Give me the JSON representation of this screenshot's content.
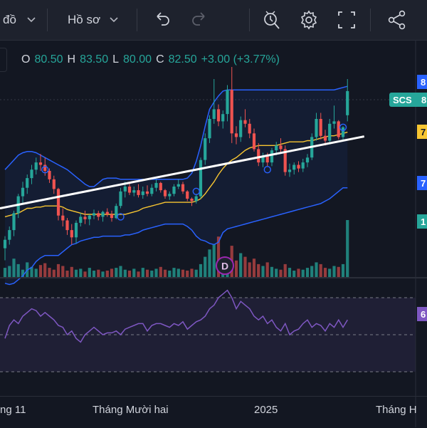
{
  "toolbar": {
    "chart_label": "đồ",
    "profile_label": "Hồ sơ",
    "icons": [
      "chevron-down-icon",
      "undo-icon",
      "redo-icon",
      "alert-icon",
      "gear-icon",
      "fullscreen-icon",
      "share-icon"
    ]
  },
  "ohlc": {
    "o_label": "O",
    "o_value": "80.50",
    "h_label": "H",
    "h_value": "83.50",
    "l_label": "L",
    "l_value": "80.00",
    "c_label": "C",
    "c_value": "82.50",
    "change": "+3.00 (+3.77%)"
  },
  "price_labels": {
    "symbol": "SCS",
    "symbol_value": "8",
    "upper_band": "8",
    "ma": "7",
    "lower_band": "7",
    "volume": "1",
    "rsi": "6"
  },
  "time_axis": {
    "labels": [
      "ng 11",
      "Tháng Mười hai",
      "2025",
      "Tháng H"
    ]
  },
  "events": {
    "dividend_marker": "D"
  },
  "colors": {
    "up": "#26a69a",
    "down": "#ef5350",
    "band": "#2962ff",
    "ma": "#f7c531",
    "rsi": "#7e57c2",
    "trendline": "#ffffff",
    "background": "#131722"
  },
  "chart_data": [
    {
      "type": "candlestick",
      "title": "",
      "trendline": {
        "from": [
          0,
          72.8
        ],
        "to": [
          79,
          78.75
        ]
      },
      "candles": [
        [
          69.5,
          70.5,
          68.5,
          70.2
        ],
        [
          70.2,
          71.3,
          69.8,
          71.0
        ],
        [
          71.0,
          72.6,
          70.5,
          72.4
        ],
        [
          72.4,
          74.0,
          72.0,
          73.8
        ],
        [
          73.8,
          75.0,
          73.2,
          74.5
        ],
        [
          74.5,
          75.6,
          74.0,
          75.3
        ],
        [
          75.3,
          76.4,
          74.8,
          76.0
        ],
        [
          76.0,
          77.0,
          75.6,
          76.6
        ],
        [
          76.6,
          77.3,
          75.9,
          76.4
        ],
        [
          76.4,
          77.0,
          75.5,
          75.9
        ],
        [
          75.9,
          76.1,
          74.9,
          75.2
        ],
        [
          75.2,
          75.5,
          74.0,
          74.4
        ],
        [
          74.4,
          74.5,
          71.8,
          72.2
        ],
        [
          72.2,
          72.8,
          71.3,
          71.8
        ],
        [
          71.8,
          72.0,
          70.6,
          71.0
        ],
        [
          71.0,
          71.5,
          69.8,
          70.4
        ],
        [
          70.4,
          71.8,
          69.9,
          71.6
        ],
        [
          71.6,
          72.4,
          71.3,
          72.1
        ],
        [
          72.1,
          72.6,
          71.5,
          71.9
        ],
        [
          71.9,
          72.3,
          71.4,
          72.2
        ],
        [
          72.2,
          72.7,
          71.9,
          72.4
        ],
        [
          72.4,
          72.6,
          71.8,
          72.1
        ],
        [
          72.1,
          72.6,
          71.7,
          72.5
        ],
        [
          72.5,
          72.8,
          72.1,
          72.3
        ],
        [
          72.3,
          72.6,
          71.7,
          72.0
        ],
        [
          72.0,
          73.2,
          71.9,
          73.0
        ],
        [
          73.0,
          74.5,
          72.8,
          74.2
        ],
        [
          74.2,
          75.0,
          73.7,
          74.6
        ],
        [
          74.6,
          74.9,
          73.9,
          74.1
        ],
        [
          74.1,
          74.6,
          73.8,
          74.3
        ],
        [
          74.3,
          74.8,
          73.7,
          73.9
        ],
        [
          73.9,
          74.6,
          73.6,
          74.2
        ],
        [
          74.2,
          74.7,
          73.8,
          74.0
        ],
        [
          74.0,
          74.8,
          73.8,
          74.5
        ],
        [
          74.5,
          75.2,
          74.2,
          74.9
        ],
        [
          74.9,
          75.0,
          74.1,
          74.3
        ],
        [
          74.3,
          74.4,
          73.6,
          73.8
        ],
        [
          73.8,
          74.2,
          73.5,
          74.0
        ],
        [
          74.0,
          74.8,
          73.8,
          74.6
        ],
        [
          74.6,
          75.2,
          74.4,
          74.8
        ],
        [
          74.8,
          75.0,
          74.0,
          74.2
        ],
        [
          74.2,
          74.3,
          73.4,
          73.6
        ],
        [
          73.6,
          73.7,
          73.0,
          73.4
        ],
        [
          73.4,
          74.0,
          73.2,
          73.8
        ],
        [
          73.8,
          77.0,
          73.6,
          76.8
        ],
        [
          76.8,
          79.0,
          76.4,
          78.6
        ],
        [
          78.6,
          80.5,
          78.2,
          80.2
        ],
        [
          80.2,
          83.5,
          79.8,
          81.0
        ],
        [
          81.0,
          81.4,
          79.6,
          80.0
        ],
        [
          80.0,
          80.9,
          79.4,
          80.6
        ],
        [
          80.6,
          83.0,
          80.0,
          82.6
        ],
        [
          82.6,
          84.5,
          78.2,
          79.0
        ],
        [
          79.0,
          79.6,
          78.1,
          78.7
        ],
        [
          78.7,
          80.4,
          78.3,
          80.1
        ],
        [
          80.1,
          81.0,
          79.5,
          79.8
        ],
        [
          79.8,
          80.2,
          78.6,
          79.0
        ],
        [
          79.0,
          79.4,
          77.5,
          77.7
        ],
        [
          77.7,
          78.2,
          76.3,
          76.6
        ],
        [
          76.6,
          77.4,
          76.2,
          77.1
        ],
        [
          77.1,
          77.4,
          76.3,
          76.6
        ],
        [
          76.6,
          77.8,
          76.3,
          77.6
        ],
        [
          77.6,
          78.3,
          77.2,
          78.0
        ],
        [
          78.0,
          78.6,
          77.4,
          77.7
        ],
        [
          77.7,
          78.0,
          75.5,
          75.8
        ],
        [
          75.8,
          76.5,
          75.4,
          76.0
        ],
        [
          76.0,
          76.6,
          75.6,
          76.4
        ],
        [
          76.4,
          76.7,
          75.8,
          76.1
        ],
        [
          76.1,
          76.9,
          75.8,
          76.6
        ],
        [
          76.6,
          77.3,
          76.2,
          77.0
        ],
        [
          77.0,
          79.0,
          76.8,
          78.7
        ],
        [
          78.7,
          80.7,
          78.4,
          80.2
        ],
        [
          80.2,
          80.7,
          78.5,
          78.8
        ],
        [
          78.8,
          79.3,
          78.0,
          78.4
        ],
        [
          78.4,
          80.2,
          78.1,
          79.8
        ],
        [
          79.8,
          81.3,
          79.4,
          80.0
        ],
        [
          80.0,
          80.1,
          78.5,
          78.7
        ],
        [
          78.7,
          79.6,
          78.4,
          79.5
        ],
        [
          80.5,
          83.5,
          80.0,
          82.5
        ]
      ],
      "volume": [
        10,
        12,
        20,
        14,
        8,
        16,
        11,
        9,
        13,
        15,
        10,
        8,
        14,
        12,
        7,
        11,
        8,
        9,
        6,
        10,
        7,
        8,
        6,
        7,
        9,
        10,
        12,
        8,
        7,
        9,
        6,
        10,
        8,
        7,
        9,
        11,
        8,
        7,
        10,
        9,
        8,
        7,
        9,
        8,
        14,
        22,
        30,
        36,
        44,
        20,
        18,
        34,
        18,
        26,
        22,
        16,
        20,
        14,
        12,
        16,
        11,
        9,
        8,
        14,
        10,
        7,
        9,
        8,
        10,
        12,
        16,
        14,
        10,
        9,
        12,
        11,
        14,
        62
      ],
      "bollinger_upper": [
        76.0,
        76.4,
        76.8,
        77.2,
        77.4,
        77.5,
        77.5,
        77.4,
        77.2,
        77.0,
        76.8,
        76.6,
        76.4,
        76.2,
        76.0,
        75.7,
        75.4,
        75.1,
        74.8,
        74.6,
        74.6,
        74.9,
        75.2,
        75.3,
        75.3,
        75.3,
        75.2,
        75.2,
        75.2,
        75.2,
        75.2,
        75.2,
        75.2,
        75.2,
        75.2,
        75.2,
        75.2,
        75.2,
        75.2,
        75.2,
        75.2,
        75.3,
        75.7,
        76.7,
        78.0,
        79.6,
        81.0,
        81.6,
        82.1,
        82.5,
        82.6,
        82.6,
        82.6,
        82.6,
        82.6,
        82.6,
        82.6,
        82.6,
        82.6,
        82.6,
        82.6,
        82.6,
        82.6,
        82.6,
        82.6,
        82.6,
        82.6,
        82.6,
        82.6,
        82.6,
        82.6,
        82.6,
        82.6,
        82.6,
        82.6,
        82.7,
        82.8,
        82.9
      ],
      "bollinger_middle": [
        72.1,
        72.2,
        72.3,
        72.4,
        72.6,
        72.8,
        72.8,
        72.9,
        72.9,
        73.0,
        73.0,
        73.0,
        73.0,
        72.9,
        72.7,
        72.6,
        72.5,
        72.4,
        72.3,
        72.3,
        72.3,
        72.3,
        72.3,
        72.3,
        72.3,
        72.3,
        72.3,
        72.3,
        72.4,
        72.5,
        72.6,
        72.8,
        72.9,
        73.0,
        73.1,
        73.2,
        73.3,
        73.3,
        73.3,
        73.3,
        73.3,
        73.3,
        73.3,
        73.4,
        73.6,
        74.0,
        74.5,
        75.0,
        75.6,
        76.1,
        76.5,
        76.8,
        77.0,
        77.3,
        77.6,
        77.8,
        77.9,
        78.0,
        78.0,
        78.0,
        78.0,
        78.0,
        78.1,
        78.2,
        78.3,
        78.3,
        78.3,
        78.3,
        78.4,
        78.4,
        78.5,
        78.6,
        78.7,
        78.8,
        78.8,
        78.9,
        79.0,
        79.1
      ],
      "bollinger_lower": [
        66.6,
        66.5,
        66.6,
        66.9,
        67.2,
        67.7,
        67.9,
        68.4,
        68.7,
        68.9,
        68.9,
        68.9,
        68.9,
        69.2,
        69.5,
        69.8,
        69.9,
        70.1,
        70.2,
        70.3,
        70.4,
        70.4,
        70.5,
        70.5,
        70.5,
        70.5,
        70.5,
        70.6,
        70.6,
        70.7,
        70.8,
        71.0,
        71.1,
        71.2,
        71.3,
        71.4,
        71.5,
        71.5,
        71.5,
        71.5,
        71.5,
        71.3,
        71.0,
        70.5,
        70.2,
        70.1,
        69.9,
        69.8,
        70.0,
        70.8,
        71.1,
        71.2,
        71.3,
        71.4,
        71.5,
        71.6,
        71.7,
        71.8,
        71.9,
        72.0,
        72.1,
        72.2,
        72.3,
        72.4,
        72.5,
        72.6,
        72.7,
        72.8,
        72.9,
        73.0,
        73.1,
        73.2,
        73.4,
        73.6,
        73.9,
        74.2,
        74.5,
        74.5
      ],
      "rsi": [
        48,
        55,
        58,
        56,
        60,
        62,
        64,
        63,
        60,
        62,
        60,
        58,
        55,
        54,
        50,
        52,
        48,
        46,
        50,
        52,
        54,
        52,
        50,
        51,
        51,
        52,
        50,
        53,
        54,
        55,
        56,
        56,
        52,
        55,
        56,
        56,
        55,
        54,
        56,
        55,
        57,
        53,
        55,
        57,
        58,
        60,
        64,
        66,
        70,
        72,
        74,
        70,
        64,
        68,
        66,
        64,
        60,
        58,
        60,
        56,
        58,
        54,
        52,
        56,
        50,
        52,
        53,
        56,
        58,
        54,
        56,
        55,
        52,
        56,
        54,
        58,
        54,
        58
      ]
    }
  ]
}
